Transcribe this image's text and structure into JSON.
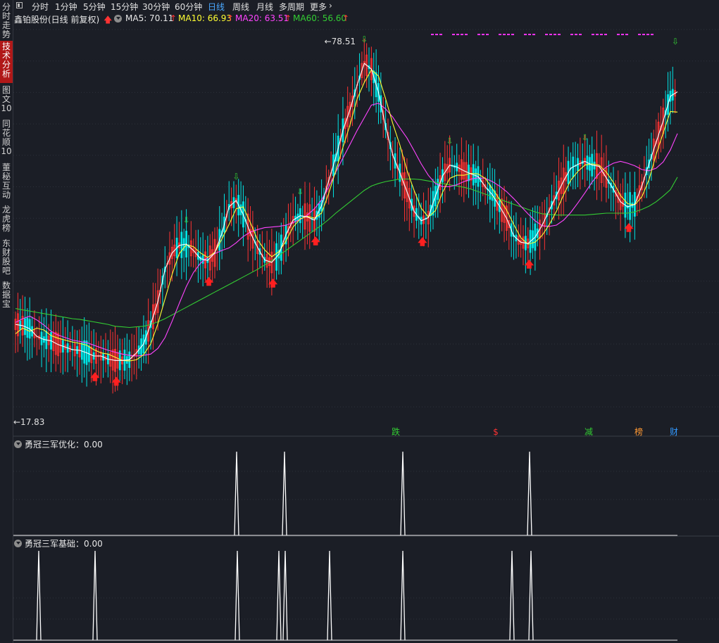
{
  "sidebar": {
    "items": [
      {
        "label": "分时走势",
        "active": false
      },
      {
        "label": "技术分析",
        "active": true
      },
      {
        "label": "图文10",
        "active": false
      },
      {
        "label": "同花顺10",
        "active": false
      },
      {
        "label": "董秘互动",
        "active": false
      },
      {
        "label": "龙虎榜",
        "active": false
      },
      {
        "label": "东财股吧",
        "active": false
      },
      {
        "label": "数据宝",
        "active": false
      }
    ]
  },
  "topbar": {
    "tabs": [
      "分时",
      "1分钟",
      "5分钟",
      "15分钟",
      "30分钟",
      "60分钟",
      "日线",
      "周线",
      "月线",
      "多周期",
      "更多"
    ],
    "active_tab": "日线",
    "more_icon": "chevron-right-icon"
  },
  "legend": {
    "title": "鑫铂股份(日线 前复权)",
    "ma5_label": "MA5: 70.11",
    "ma10_label": "MA10: 66.93",
    "ma20_label": "MA20: 63.51",
    "ma60_label": "MA60: 56.60",
    "colors": {
      "ma5": "#ffffff",
      "ma10": "#ffff33",
      "ma20": "#ff44ff",
      "ma60": "#33cc33",
      "up": "#ff3333",
      "down": "#00e5e5"
    }
  },
  "price_markers": {
    "high_label": "78.51",
    "low_label": "17.83"
  },
  "event_badges": [
    {
      "label": "跌",
      "color": "#33cc33"
    },
    {
      "label": "$",
      "color": "#ff3333"
    },
    {
      "label": "减",
      "color": "#33cc33"
    },
    {
      "label": "榜",
      "color": "#ff9933"
    },
    {
      "label": "财",
      "color": "#3399ff"
    }
  ],
  "indicator_panes": [
    {
      "title": "勇冠三军优化",
      "value": "0.00"
    },
    {
      "title": "勇冠三军基础",
      "value": "0.00"
    }
  ],
  "chart_data": {
    "type": "candlestick",
    "price_range": [
      17.83,
      78.51
    ],
    "ma5": [
      33.3,
      33.1,
      32.6,
      31.4,
      30.9,
      30.7,
      30.1,
      29.7,
      29.3,
      29.2,
      28.8,
      28.3,
      28.3,
      27.8,
      27.6,
      27.6,
      27.7,
      28.8,
      30.2,
      33.3,
      36.9,
      42.0,
      44.6,
      45.8,
      46.0,
      45.0,
      43.7,
      43.4,
      44.6,
      47.7,
      51.9,
      52.9,
      50.7,
      47.8,
      45.5,
      43.5,
      43.1,
      44.4,
      47.5,
      49.8,
      50.5,
      50.3,
      49.8,
      52.1,
      56.0,
      59.7,
      64.0,
      67.3,
      71.2,
      74.6,
      73.7,
      70.0,
      64.6,
      60.1,
      57.3,
      54.3,
      51.2,
      49.7,
      50.2,
      53.6,
      56.8,
      58.5,
      58.2,
      57.6,
      57.1,
      56.7,
      55.1,
      53.8,
      52.0,
      50.1,
      47.3,
      46.3,
      46.1,
      47.1,
      49.0,
      51.4,
      53.7,
      56.0,
      58.0,
      58.6,
      59.1,
      58.5,
      58.3,
      56.5,
      54.7,
      52.7,
      51.9,
      52.3,
      55.2,
      58.7,
      62.1,
      65.5,
      69.4,
      70.1
    ],
    "ma10": [
      31.8,
      32.7,
      32.2,
      32.7,
      32.4,
      31.5,
      31.1,
      30.8,
      30.5,
      30.3,
      30.0,
      29.3,
      28.8,
      28.6,
      28.1,
      27.6,
      27.5,
      27.7,
      28.5,
      30.2,
      33.4,
      37.3,
      41.2,
      44.5,
      45.9,
      45.6,
      44.6,
      43.9,
      44.7,
      46.8,
      49.1,
      51.6,
      51.9,
      49.4,
      46.7,
      45.1,
      44.0,
      44.8,
      46.5,
      48.7,
      50.0,
      50.4,
      50.1,
      50.9,
      54.0,
      57.6,
      61.3,
      64.9,
      69.0,
      71.6,
      73.6,
      72.6,
      69.0,
      65.1,
      61.7,
      57.7,
      54.5,
      51.7,
      50.3,
      51.3,
      54.2,
      56.4,
      56.9,
      56.9,
      57.2,
      57.1,
      56.4,
      54.8,
      53.1,
      51.4,
      49.1,
      47.0,
      46.0,
      46.3,
      47.4,
      49.1,
      51.2,
      53.8,
      56.1,
      57.5,
      58.5,
      58.7,
      58.5,
      57.4,
      55.8,
      53.7,
      52.4,
      52.2,
      53.5,
      56.2,
      60.2,
      63.6,
      67.0,
      66.9
    ],
    "ma20": [
      33.6,
      34.2,
      34.6,
      34.0,
      33.2,
      32.2,
      31.6,
      31.2,
      30.8,
      30.6,
      30.4,
      30.0,
      29.6,
      29.2,
      28.9,
      28.6,
      28.4,
      28.3,
      28.4,
      28.6,
      29.5,
      31.2,
      33.8,
      36.6,
      39.3,
      41.5,
      43.0,
      43.9,
      44.5,
      45.0,
      45.4,
      46.2,
      47.2,
      47.9,
      48.3,
      48.6,
      48.7,
      48.8,
      49.0,
      49.4,
      49.9,
      50.6,
      51.6,
      53.0,
      55.0,
      57.4,
      59.6,
      61.8,
      64.0,
      66.0,
      68.0,
      68.3,
      67.4,
      66.1,
      64.4,
      62.8,
      60.8,
      58.7,
      56.9,
      55.6,
      55.1,
      55.1,
      55.4,
      55.9,
      56.3,
      56.5,
      56.4,
      55.9,
      55.2,
      54.3,
      53.2,
      52.0,
      50.8,
      49.7,
      48.9,
      48.8,
      49.0,
      49.8,
      51.0,
      52.5,
      54.1,
      55.8,
      57.2,
      58.2,
      58.8,
      59.1,
      58.8,
      58.4,
      57.8,
      57.6,
      58.0,
      59.0,
      60.9,
      63.5
    ],
    "ma60": [
      35.8,
      35.6,
      35.4,
      35.2,
      35.0,
      34.8,
      34.6,
      34.4,
      34.2,
      34.1,
      33.9,
      33.7,
      33.5,
      33.3,
      33.0,
      32.9,
      32.8,
      32.9,
      33.0,
      33.3,
      33.7,
      34.2,
      34.8,
      35.4,
      36.0,
      36.6,
      37.2,
      37.8,
      38.4,
      39.0,
      39.6,
      40.2,
      40.8,
      41.4,
      42.0,
      42.7,
      43.4,
      44.2,
      45.0,
      45.8,
      46.6,
      47.4,
      48.2,
      49.0,
      49.9,
      50.9,
      51.8,
      52.7,
      53.6,
      54.5,
      55.2,
      55.6,
      55.9,
      56.1,
      56.3,
      56.3,
      56.3,
      56.2,
      56.0,
      55.8,
      55.6,
      55.4,
      55.2,
      55.0,
      54.7,
      54.3,
      53.9,
      53.5,
      53.1,
      52.7,
      52.3,
      51.9,
      51.5,
      51.1,
      50.8,
      50.7,
      50.6,
      50.6,
      50.6,
      50.6,
      50.6,
      50.7,
      50.8,
      50.9,
      50.9,
      50.9,
      50.9,
      51.1,
      51.5,
      52.0,
      52.7,
      53.6,
      54.6,
      56.6
    ],
    "down_arrow_signals": 18,
    "up_arrow_signals": 9,
    "indicator_1_spikes": 4,
    "indicator_2_spikes": 9,
    "grid": true
  }
}
